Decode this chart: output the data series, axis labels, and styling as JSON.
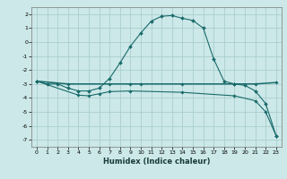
{
  "background_color": "#cce8e8",
  "grid_color": "#aacece",
  "line_color": "#1a6b6b",
  "xlabel": "Humidex (Indice chaleur)",
  "xlim": [
    -0.5,
    23.5
  ],
  "ylim": [
    -7.5,
    2.5
  ],
  "yticks": [
    -7,
    -6,
    -5,
    -4,
    -3,
    -2,
    -1,
    0,
    1,
    2
  ],
  "xticks": [
    0,
    1,
    2,
    3,
    4,
    5,
    6,
    7,
    8,
    9,
    10,
    11,
    12,
    13,
    14,
    15,
    16,
    17,
    18,
    19,
    20,
    21,
    22,
    23
  ],
  "curve1_x": [
    0,
    1,
    2,
    3,
    4,
    5,
    6,
    7,
    8,
    9,
    10,
    11,
    12,
    13,
    14,
    15,
    16,
    17,
    18,
    19,
    20,
    21,
    22,
    23
  ],
  "curve1_y": [
    -2.8,
    -3.0,
    -3.0,
    -3.3,
    -3.5,
    -3.5,
    -3.3,
    -2.6,
    -1.5,
    -0.3,
    0.65,
    1.5,
    1.85,
    1.9,
    1.7,
    1.55,
    1.0,
    -1.2,
    -2.8,
    -3.0,
    -3.1,
    -3.5,
    -4.4,
    -6.7
  ],
  "curve2_x": [
    0,
    3,
    7,
    9,
    10,
    14,
    19,
    21,
    23
  ],
  "curve2_y": [
    -2.8,
    -3.0,
    -3.0,
    -3.0,
    -3.0,
    -3.0,
    -3.0,
    -3.0,
    -2.9
  ],
  "curve3_x": [
    0,
    4,
    5,
    6,
    7,
    9,
    14,
    19,
    21,
    22,
    23
  ],
  "curve3_y": [
    -2.8,
    -3.8,
    -3.85,
    -3.7,
    -3.55,
    -3.5,
    -3.6,
    -3.85,
    -4.2,
    -5.0,
    -6.7
  ],
  "xlabel_fontsize": 6,
  "tick_fontsize": 4.5
}
